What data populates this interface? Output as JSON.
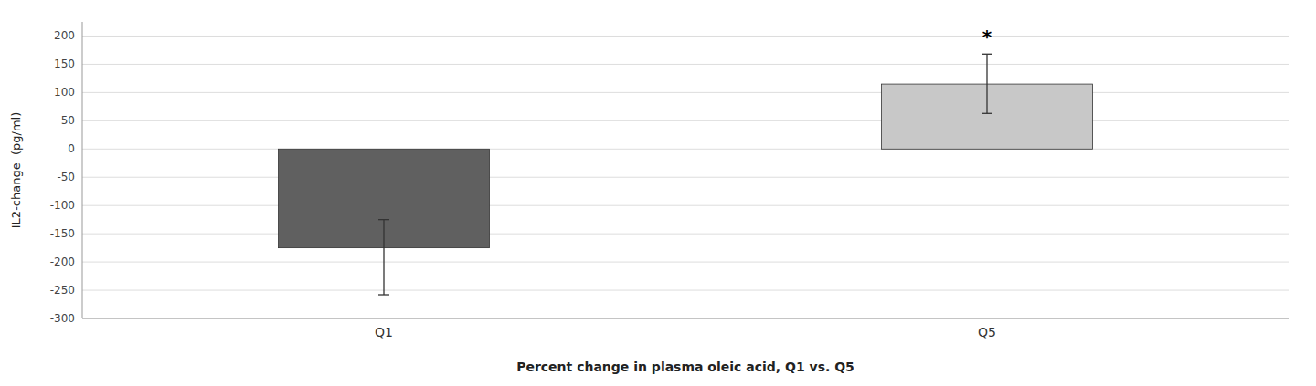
{
  "chart_data": {
    "type": "bar",
    "categories": [
      "Q1",
      "Q5"
    ],
    "values": [
      -175,
      115
    ],
    "error_lower": [
      -258,
      63
    ],
    "error_upper": [
      -125,
      168
    ],
    "colors": [
      "#606060",
      "#c8c8c8"
    ],
    "xlabel": "Percent change in plasma oleic acid, Q1 vs. Q5",
    "ylabel": "IL2-change  (pg/ml)",
    "ylim": [
      -300,
      225
    ],
    "yticks": [
      -300,
      -250,
      -200,
      -150,
      -100,
      -50,
      0,
      50,
      100,
      150,
      200
    ],
    "grid": true,
    "annotations": [
      {
        "text": "*",
        "category": "Q5",
        "y": 188
      }
    ]
  }
}
